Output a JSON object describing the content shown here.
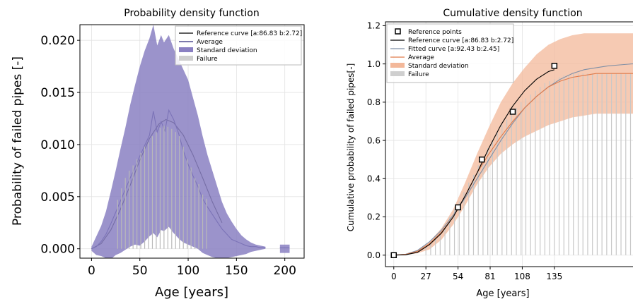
{
  "chart_data": [
    {
      "type": "line",
      "title": "Probability density function",
      "xlabel": "Age [years]",
      "ylabel": "Probability of failed pipes [-]",
      "xlim": [
        -12,
        220
      ],
      "ylim": [
        -0.0009,
        0.0215
      ],
      "xticks": [
        0,
        50,
        100,
        150,
        200
      ],
      "xtick_labels": [
        "0",
        "50",
        "100",
        "150",
        "200"
      ],
      "yticks": [
        0,
        0.005,
        0.01,
        0.015,
        0.02
      ],
      "ytick_labels": [
        "0.000",
        "0.005",
        "0.010",
        "0.015",
        "0.020"
      ],
      "grid": true,
      "legend_position": "top-right",
      "legend": [
        "Reference curve [a:86.83 b:2.72]",
        "Average",
        "Standard deviation",
        "Failure"
      ],
      "colors": {
        "reference": "#000000",
        "average": "#2d2a7a",
        "std_fill": "#8a80c2",
        "failure": "#b9b9b9"
      },
      "series": [
        {
          "name": "Reference curve [a:86.83 b:2.72]",
          "kind": "line",
          "x": [
            0,
            10,
            20,
            30,
            40,
            50,
            60,
            70,
            77,
            85,
            95,
            105,
            115,
            125,
            135
          ],
          "y": [
            0,
            0.0005,
            0.0018,
            0.0038,
            0.0061,
            0.0085,
            0.0106,
            0.012,
            0.0124,
            0.0121,
            0.0109,
            0.009,
            0.0068,
            0.0045,
            0.0025
          ]
        },
        {
          "name": "Average",
          "kind": "line",
          "x": [
            0,
            5,
            10,
            15,
            20,
            25,
            30,
            35,
            40,
            45,
            50,
            55,
            60,
            64,
            68,
            72,
            76,
            80,
            85,
            90,
            95,
            100,
            105,
            110,
            115,
            120,
            125,
            130,
            135,
            140,
            145,
            150,
            155,
            160,
            165,
            170,
            175,
            180
          ],
          "y": [
            0,
            0.0002,
            0.0007,
            0.0014,
            0.0024,
            0.0035,
            0.0046,
            0.0057,
            0.0068,
            0.0078,
            0.0089,
            0.0099,
            0.0109,
            0.0132,
            0.0112,
            0.0122,
            0.0113,
            0.0133,
            0.0124,
            0.0111,
            0.0094,
            0.0081,
            0.007,
            0.006,
            0.0048,
            0.004,
            0.0033,
            0.0026,
            0.0019,
            0.0014,
            0.0009,
            0.0007,
            0.0005,
            0.0003,
            0.0002,
            0.0002,
            0.0001,
            0.0001
          ]
        },
        {
          "name": "Average",
          "kind": "line",
          "x": [
            195,
            205
          ],
          "y": [
            0.0001,
            0.0001
          ]
        },
        {
          "name": "Standard deviation",
          "kind": "band",
          "x": [
            0,
            5,
            10,
            15,
            20,
            25,
            30,
            35,
            40,
            45,
            50,
            55,
            60,
            64,
            68,
            72,
            75,
            80,
            85,
            90,
            95,
            100,
            105,
            110,
            115,
            120,
            125,
            130,
            135,
            140,
            145,
            150,
            155,
            160,
            165,
            170,
            175,
            180
          ],
          "upper": [
            0.0002,
            0.0012,
            0.0022,
            0.0036,
            0.0055,
            0.0075,
            0.0096,
            0.0116,
            0.0138,
            0.0157,
            0.0175,
            0.019,
            0.0202,
            0.0215,
            0.0195,
            0.0205,
            0.0198,
            0.0205,
            0.0192,
            0.0182,
            0.0172,
            0.0162,
            0.0145,
            0.0128,
            0.0108,
            0.009,
            0.0075,
            0.006,
            0.0045,
            0.0034,
            0.0026,
            0.0019,
            0.0013,
            0.0009,
            0.0006,
            0.0004,
            0.0003,
            0.0002
          ],
          "lower": [
            -0.0002,
            -0.0006,
            -0.0007,
            -0.0009,
            -0.001,
            -0.0006,
            -0.0004,
            -0.0001,
            0.0002,
            0.0004,
            0.0003,
            0.0007,
            0.0012,
            0.0015,
            0.0011,
            0.0018,
            0.0017,
            0.0021,
            0.0015,
            0.001,
            0.0006,
            0.0004,
            0.0002,
            0.0,
            -0.0004,
            -0.0006,
            -0.0008,
            -0.0009,
            -0.0009,
            -0.0009,
            -0.0008,
            -0.0007,
            -0.0006,
            -0.0005,
            -0.0003,
            -0.0002,
            -0.0001,
            0.0
          ]
        },
        {
          "name": "Standard deviation",
          "kind": "band",
          "x": [
            195,
            205
          ],
          "upper": [
            0.0004,
            0.0004
          ],
          "lower": [
            -0.0004,
            -0.0004
          ]
        },
        {
          "name": "Failure",
          "kind": "bars",
          "x": [
            27,
            31,
            35,
            39,
            43,
            47,
            51,
            55,
            59,
            63,
            67,
            71,
            75,
            79,
            83,
            87,
            91,
            95,
            99,
            103,
            107,
            111,
            115,
            119
          ],
          "y": [
            0.0047,
            0.0058,
            0.0068,
            0.0075,
            0.008,
            0.0086,
            0.0092,
            0.0098,
            0.0102,
            0.0108,
            0.0112,
            0.0116,
            0.0118,
            0.0117,
            0.0115,
            0.0112,
            0.0108,
            0.0098,
            0.0086,
            0.0078,
            0.0068,
            0.0062,
            0.0052,
            0.0048
          ]
        }
      ]
    },
    {
      "type": "line",
      "title": "Cumulative density function",
      "xlabel": "Age [years]",
      "ylabel": "Cumulative probability of failed pipes[-]",
      "xlim": [
        -7,
        210
      ],
      "ylim": [
        -0.06,
        1.22
      ],
      "xticks": [
        0,
        27,
        54,
        81,
        108,
        135
      ],
      "xtick_labels": [
        "0",
        "27",
        "54",
        "81",
        "108",
        "135"
      ],
      "yticks": [
        0,
        0.2,
        0.4,
        0.6,
        0.8,
        1.0,
        1.2
      ],
      "ytick_labels": [
        "0.0",
        "0.2",
        "0.4",
        "0.6",
        "0.8",
        "1.0",
        "1.2"
      ],
      "grid": true,
      "legend_position": "top-left",
      "legend": [
        "Reference points",
        "Reference curve [a:86.83 b:2.72]",
        "Fitted curve [a:92.43 b:2.45]",
        "Average",
        "Standard deviation",
        "Failure"
      ],
      "colors": {
        "reference": "#000000",
        "fitted": "#7f8fa6",
        "average": "#e07a4a",
        "std_fill": "#f3b89a",
        "failure": "#c8c8c8"
      },
      "series": [
        {
          "name": "Standard deviation",
          "kind": "band",
          "x": [
            0,
            10,
            20,
            30,
            40,
            50,
            60,
            70,
            80,
            90,
            100,
            110,
            120,
            130,
            140,
            150,
            160,
            170,
            180,
            190,
            200,
            210
          ],
          "upper": [
            0,
            0.005,
            0.025,
            0.07,
            0.14,
            0.24,
            0.38,
            0.53,
            0.67,
            0.8,
            0.9,
            0.98,
            1.05,
            1.1,
            1.13,
            1.15,
            1.16,
            1.16,
            1.16,
            1.16,
            1.16,
            1.16
          ],
          "lower": [
            0,
            0.002,
            0.01,
            0.03,
            0.08,
            0.16,
            0.26,
            0.37,
            0.46,
            0.53,
            0.58,
            0.62,
            0.65,
            0.68,
            0.7,
            0.72,
            0.73,
            0.74,
            0.74,
            0.74,
            0.74,
            0.74
          ]
        },
        {
          "name": "Failure",
          "kind": "bars",
          "x": [
            27,
            31,
            35,
            39,
            43,
            47,
            51,
            55,
            59,
            63,
            67,
            71,
            75,
            79,
            83,
            87,
            91,
            95,
            99,
            103,
            107,
            111,
            115,
            119,
            123,
            127,
            131,
            135,
            139,
            143,
            147,
            151,
            155,
            159,
            163,
            167,
            171,
            175,
            179,
            183,
            187,
            191,
            195,
            199,
            203,
            207
          ],
          "y": [
            0.05,
            0.07,
            0.1,
            0.13,
            0.16,
            0.2,
            0.24,
            0.28,
            0.33,
            0.38,
            0.42,
            0.47,
            0.51,
            0.56,
            0.6,
            0.64,
            0.68,
            0.71,
            0.74,
            0.77,
            0.8,
            0.82,
            0.84,
            0.86,
            0.88,
            0.9,
            0.91,
            0.92,
            0.93,
            0.94,
            0.94,
            0.95,
            0.95,
            0.95,
            0.95,
            0.95,
            0.95,
            0.95,
            0.95,
            0.95,
            0.95,
            0.95,
            0.95,
            0.95,
            0.95,
            0.95
          ]
        },
        {
          "name": "Fitted curve [a:92.43 b:2.45]",
          "kind": "line",
          "x": [
            0,
            10,
            20,
            30,
            40,
            50,
            60,
            70,
            80,
            90,
            100,
            110,
            120,
            130,
            140,
            150,
            160,
            170,
            180,
            190,
            200,
            210
          ],
          "y": [
            0,
            0.005,
            0.025,
            0.07,
            0.13,
            0.21,
            0.3,
            0.4,
            0.5,
            0.6,
            0.69,
            0.77,
            0.83,
            0.88,
            0.92,
            0.95,
            0.97,
            0.98,
            0.99,
            0.995,
            1.0,
            1.0
          ]
        },
        {
          "name": "Average",
          "kind": "line",
          "x": [
            0,
            10,
            20,
            30,
            40,
            50,
            60,
            70,
            80,
            90,
            100,
            110,
            120,
            130,
            140,
            150,
            160,
            170,
            180,
            190,
            200,
            210
          ],
          "y": [
            0,
            0.004,
            0.02,
            0.06,
            0.12,
            0.2,
            0.31,
            0.43,
            0.53,
            0.62,
            0.7,
            0.77,
            0.83,
            0.88,
            0.91,
            0.93,
            0.94,
            0.95,
            0.95,
            0.95,
            0.95,
            0.95
          ]
        },
        {
          "name": "Reference curve [a:86.83 b:2.72]",
          "kind": "line",
          "x": [
            0,
            10,
            20,
            30,
            40,
            50,
            60,
            70,
            80,
            90,
            100,
            110,
            120,
            130,
            135
          ],
          "y": [
            0,
            0.002,
            0.015,
            0.055,
            0.115,
            0.2,
            0.31,
            0.43,
            0.56,
            0.68,
            0.78,
            0.86,
            0.92,
            0.96,
            0.97
          ]
        },
        {
          "name": "Reference points",
          "kind": "points",
          "x": [
            0,
            54,
            74,
            100,
            135
          ],
          "y": [
            0,
            0.25,
            0.5,
            0.75,
            0.99
          ]
        }
      ]
    }
  ]
}
